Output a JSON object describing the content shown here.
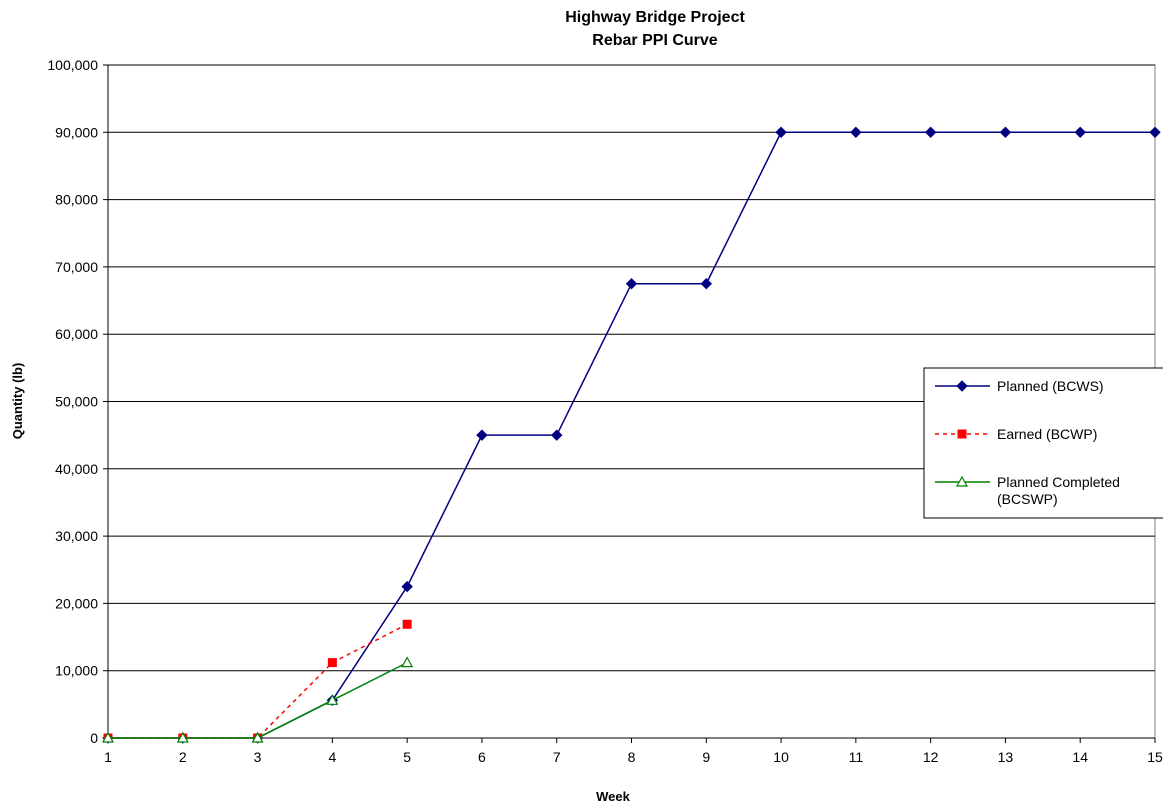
{
  "chart_data": {
    "type": "line",
    "title": "Highway Bridge Project",
    "subtitle": "Rebar PPI Curve",
    "xlabel": "Week",
    "ylabel": "Quantity (lb)",
    "x": [
      1,
      2,
      3,
      4,
      5,
      6,
      7,
      8,
      9,
      10,
      11,
      12,
      13,
      14,
      15
    ],
    "xlim": [
      1,
      15
    ],
    "ylim": [
      0,
      100000
    ],
    "y_ticks": [
      "0",
      "10,000",
      "20,000",
      "30,000",
      "40,000",
      "50,000",
      "60,000",
      "70,000",
      "80,000",
      "90,000",
      "100,000"
    ],
    "x_ticks": [
      "1",
      "2",
      "3",
      "4",
      "5",
      "6",
      "7",
      "8",
      "9",
      "10",
      "11",
      "12",
      "13",
      "14",
      "15"
    ],
    "grid": "horizontal",
    "legend_position": "right",
    "series": [
      {
        "name": "Planned (BCWS)",
        "color": "#000080",
        "marker": "diamond",
        "line": "solid",
        "x": [
          1,
          2,
          3,
          4,
          5,
          6,
          7,
          8,
          9,
          10,
          11,
          12,
          13,
          14,
          15
        ],
        "values": [
          0,
          0,
          0,
          5600,
          22500,
          45000,
          45000,
          67500,
          67500,
          90000,
          90000,
          90000,
          90000,
          90000,
          90000
        ]
      },
      {
        "name": "Earned (BCWP)",
        "color": "#ff0000",
        "marker": "square",
        "line": "dotted",
        "x": [
          1,
          2,
          3,
          4,
          5
        ],
        "values": [
          0,
          0,
          0,
          11200,
          16900
        ]
      },
      {
        "name": "Planned Completed (BCSWP)",
        "legend_lines": [
          "Planned Completed",
          "(BCSWP)"
        ],
        "color": "#008000",
        "marker": "triangle-open",
        "line": "solid",
        "x": [
          1,
          2,
          3,
          4,
          5
        ],
        "values": [
          0,
          0,
          0,
          5600,
          11200
        ]
      }
    ]
  }
}
